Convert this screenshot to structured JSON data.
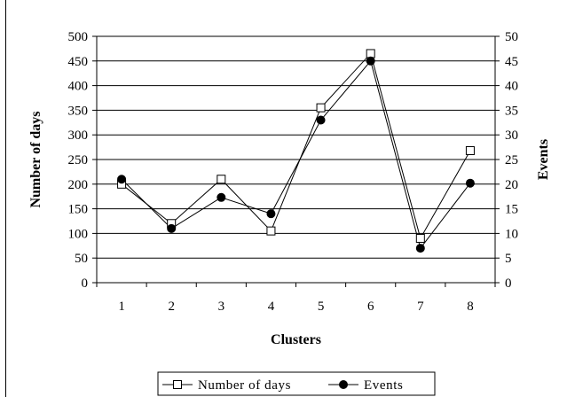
{
  "chart_data": {
    "type": "line",
    "title": "",
    "xlabel": "Clusters",
    "ylabel_left": "Number of days",
    "ylabel_right": "Events",
    "categories": [
      "1",
      "2",
      "3",
      "4",
      "5",
      "6",
      "7",
      "8"
    ],
    "ylim_left": [
      0,
      500
    ],
    "ylim_right": [
      0,
      50
    ],
    "yticks_left": [
      "0",
      "50",
      "100",
      "150",
      "200",
      "250",
      "300",
      "350",
      "400",
      "450",
      "500"
    ],
    "yticks_right": [
      "0",
      "5",
      "10",
      "15",
      "20",
      "25",
      "30",
      "35",
      "40",
      "45",
      "50"
    ],
    "grid": true,
    "legend_position": "bottom",
    "series": [
      {
        "name": "Number of days",
        "axis": "left",
        "marker": "open-square",
        "color": "#000000",
        "values": [
          200,
          120,
          210,
          105,
          355,
          465,
          90,
          268
        ]
      },
      {
        "name": "Events",
        "axis": "right",
        "marker": "filled-circle",
        "color": "#000000",
        "values": [
          21,
          11,
          17.3,
          14,
          33,
          45,
          7,
          20.2
        ]
      }
    ]
  }
}
